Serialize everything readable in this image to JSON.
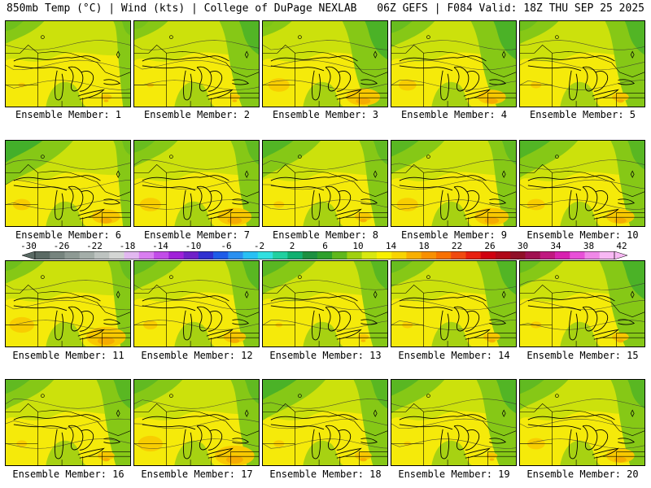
{
  "header": {
    "left": "850mb Temp (°C) | Wind (kts) | College of DuPage NEXLAB",
    "right": "06Z GEFS | F084 Valid: 18Z THU SEP 25 2025"
  },
  "panels": [
    {
      "label": "Ensemble Member: 1",
      "green_tl": 0.3,
      "green_r": 0.3,
      "orange": 0.2
    },
    {
      "label": "Ensemble Member: 2",
      "green_tl": 0.2,
      "green_r": 0.7,
      "orange": 0.2
    },
    {
      "label": "Ensemble Member: 3",
      "green_tl": 0.1,
      "green_r": 0.8,
      "orange": 0.6
    },
    {
      "label": "Ensemble Member: 4",
      "green_tl": 0.4,
      "green_r": 0.8,
      "orange": 0.5
    },
    {
      "label": "Ensemble Member: 5",
      "green_tl": 0.3,
      "green_r": 0.7,
      "orange": 0.3
    },
    {
      "label": "Ensemble Member: 6",
      "green_tl": 0.9,
      "green_r": 0.3,
      "orange": 0.5
    },
    {
      "label": "Ensemble Member: 7",
      "green_tl": 0.4,
      "green_r": 0.5,
      "orange": 0.6
    },
    {
      "label": "Ensemble Member: 8",
      "green_tl": 0.7,
      "green_r": 0.5,
      "orange": 0.3
    },
    {
      "label": "Ensemble Member: 9",
      "green_tl": 0.6,
      "green_r": 0.5,
      "orange": 0.6
    },
    {
      "label": "Ensemble Member: 10",
      "green_tl": 0.7,
      "green_r": 0.6,
      "orange": 0.5
    },
    {
      "label": "Ensemble Member: 11",
      "green_tl": 0.3,
      "green_r": 0.4,
      "orange": 0.7
    },
    {
      "label": "Ensemble Member: 12",
      "green_tl": 0.5,
      "green_r": 0.6,
      "orange": 0.4
    },
    {
      "label": "Ensemble Member: 13",
      "green_tl": 0.6,
      "green_r": 0.6,
      "orange": 0.2
    },
    {
      "label": "Ensemble Member: 14",
      "green_tl": 0.4,
      "green_r": 0.7,
      "orange": 0.3
    },
    {
      "label": "Ensemble Member: 15",
      "green_tl": 0.4,
      "green_r": 0.8,
      "orange": 0.3
    },
    {
      "label": "Ensemble Member: 16",
      "green_tl": 0.5,
      "green_r": 0.6,
      "orange": 0.3
    },
    {
      "label": "Ensemble Member: 17",
      "green_tl": 0.5,
      "green_r": 0.5,
      "orange": 0.7
    },
    {
      "label": "Ensemble Member: 18",
      "green_tl": 0.8,
      "green_r": 0.6,
      "orange": 0.3
    },
    {
      "label": "Ensemble Member: 19",
      "green_tl": 0.6,
      "green_r": 0.7,
      "orange": 0.2
    },
    {
      "label": "Ensemble Member: 20",
      "green_tl": 0.5,
      "green_r": 0.6,
      "orange": 0.5
    }
  ],
  "colorbar": {
    "ticks": [
      "-30",
      "-26",
      "-22",
      "-18",
      "-14",
      "-10",
      "-6",
      "-2",
      "2",
      "6",
      "10",
      "14",
      "18",
      "22",
      "26",
      "30",
      "34",
      "38",
      "42"
    ],
    "colors": [
      "#5a6a64",
      "#76847e",
      "#8e9a94",
      "#a4aea9",
      "#bdc3c0",
      "#d4d6d4",
      "#e2b8f0",
      "#d97ef0",
      "#c24ce8",
      "#a020d8",
      "#7020c8",
      "#3030d0",
      "#1e5ce8",
      "#2a90f0",
      "#28c0f4",
      "#30e0e0",
      "#20d0a0",
      "#10b070",
      "#1c9040",
      "#2ea02c",
      "#60b81c",
      "#a0d010",
      "#d8e810",
      "#f8f000",
      "#f8d400",
      "#f8b000",
      "#f89000",
      "#f87000",
      "#f04a10",
      "#e82010",
      "#d00010",
      "#b00818",
      "#901028",
      "#a01050",
      "#c01880",
      "#d820b0",
      "#e850d8",
      "#f088e8",
      "#f8b8f4"
    ]
  },
  "palette": {
    "green_dark": "#3cac2c",
    "green": "#86c816",
    "yellow_green": "#c8e00c",
    "yellow": "#f5ea0a",
    "orange": "#f8c800",
    "orange_dark": "#f4a400"
  }
}
